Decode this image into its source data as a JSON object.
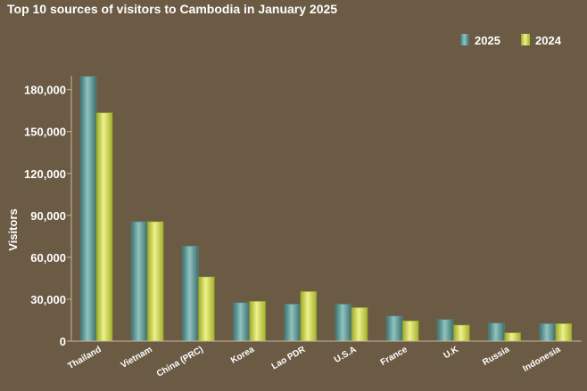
{
  "chart_data": {
    "type": "bar",
    "title": "Top 10 sources of visitors to Cambodia in January 2025",
    "xlabel": "",
    "ylabel": "Visitors",
    "ylim": [
      0,
      190000
    ],
    "yticks": [
      0,
      30000,
      60000,
      90000,
      120000,
      150000,
      180000
    ],
    "ytick_labels": [
      "0",
      "30,000",
      "60,000",
      "90,000",
      "120,000",
      "150,000",
      "180,000"
    ],
    "categories": [
      "Thailand",
      "Vietnam",
      "China (PRC)",
      "Korea",
      "Lao PDR",
      "U.S.A",
      "France",
      "U.K",
      "Russia",
      "Indonesia"
    ],
    "series": [
      {
        "name": "2025",
        "color": "#6aa3a0",
        "values": [
          189500,
          85500,
          68000,
          27500,
          26500,
          26500,
          18000,
          15500,
          13000,
          12500
        ]
      },
      {
        "name": "2024",
        "color": "#d2dc5a",
        "values": [
          163500,
          85500,
          46000,
          28500,
          35500,
          24000,
          14500,
          11500,
          6000,
          12500
        ]
      }
    ],
    "legend_position": "top-right",
    "grid": false
  }
}
